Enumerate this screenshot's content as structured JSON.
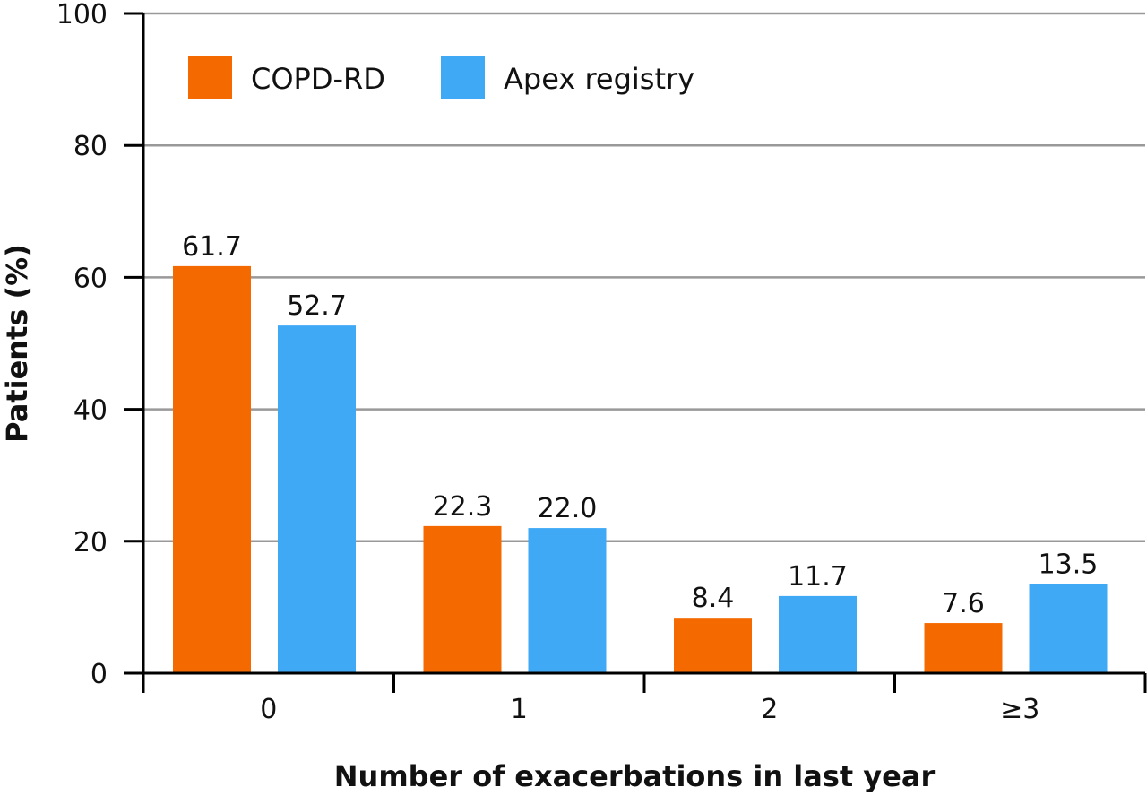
{
  "chart_data": {
    "type": "bar",
    "categories": [
      "0",
      "1",
      "2",
      "≥3"
    ],
    "series": [
      {
        "name": "COPD-RD",
        "color": "#f56a00",
        "values": [
          61.7,
          22.3,
          8.4,
          7.6
        ],
        "labels": [
          "61.7",
          "22.3",
          "8.4",
          "7.6"
        ]
      },
      {
        "name": "Apex registry",
        "color": "#3fa9f5",
        "values": [
          52.7,
          22.0,
          11.7,
          13.5
        ],
        "labels": [
          "52.7",
          "22.0",
          "11.7",
          "13.5"
        ]
      }
    ],
    "xlabel": "Number of exacerbations in last year",
    "ylabel": "Patients (%)",
    "ylim": [
      0,
      100
    ],
    "yticks": [
      "0",
      "20",
      "40",
      "60",
      "80",
      "100"
    ],
    "grid": true,
    "legend": "top-left",
    "colors": {
      "grid": "#999999",
      "axis": "#000000"
    }
  }
}
